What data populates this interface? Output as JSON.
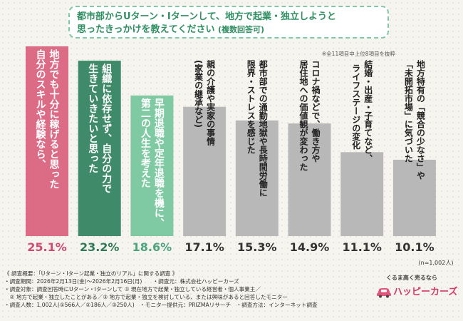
{
  "title": {
    "line1": "都市部からUターン・Iターンして、地方で起業・独立しようと",
    "line2": "思ったきっかけを教えてください",
    "suffix": "(複数回答可)"
  },
  "note": "※全11項目中上位8項目を抜粋",
  "colors": {
    "bar1": "#dc6b86",
    "bar2": "#3f8a68",
    "bar3": "#7fcaa3",
    "bar_gray": "#b8b8b8",
    "pct_first": "#d04a6f",
    "pct_second": "#2f7a56",
    "pct_third": "#4aa57c",
    "pct_gray": "#333333",
    "label_dark": "#222222",
    "label_light": "#ffffff"
  },
  "chart_data": {
    "type": "bar",
    "orientation": "vertical-text-labels",
    "unit": "%",
    "ylim": [
      0,
      30
    ],
    "n_label": "(n=1,002人)",
    "categories": [
      {
        "lines": [
          "地方でも十分に稼げると思った",
          "自分のスキルや経験なら、"
        ],
        "value": 25.1,
        "value_label": "25.1%"
      },
      {
        "lines": [
          "組織に依存せず、自分の力で",
          "生きていきたいと思った"
        ],
        "value": 23.2,
        "value_label": "23.2%"
      },
      {
        "lines": [
          "早期退職や定年退職を機に、",
          "第二の人生を考えた"
        ],
        "value": 18.6,
        "value_label": "18.6%"
      },
      {
        "lines": [
          "親の介護や実家の事情",
          "(家業の継承など)"
        ],
        "value": 17.1,
        "value_label": "17.1%"
      },
      {
        "lines": [
          "都市部での通勤地獄や長時間労働に",
          "限界・ストレスを感じた"
        ],
        "value": 15.3,
        "value_label": "15.3%"
      },
      {
        "lines": [
          "コロナ禍などで、働き方や",
          "居住地への価値観が変わった"
        ],
        "value": 14.9,
        "value_label": "14.9%"
      },
      {
        "lines": [
          "結婚・出産・子育てなど、",
          "ライフステージの変化"
        ],
        "value": 11.1,
        "value_label": "11.1%"
      },
      {
        "lines": [
          "地方特有の「競合の少なさ」や",
          "「未開拓市場」に気づいた"
        ],
        "value": 10.1,
        "value_label": "10.1%"
      }
    ]
  },
  "footer": {
    "lines": [
      "《 調査概要：「Uターン・Iターン起業・独立のリアル」に関する調査 》",
      "・調査期間：2026年2月13日(金)～2026年2月16日(月)　　・調査元：株式会社ハッピーカーズ",
      "・調査対象：調査回答時にUターン・Iターンして ① 現在地方で起業・独立している経営者・個人事業主／",
      "　② 地方で起業・独立したことがある／③ 地方で起業・独立を検討している、または興味があると回答したモニター",
      "・調査人数：1,002人(①566人／②186人／③250人)　・モニター提供元：PRIZMAリサーチ　・調査方法：インターネット調査"
    ]
  },
  "brand": {
    "tagline": "くるま高く売るなら",
    "name": "ハッピーカーズ"
  }
}
